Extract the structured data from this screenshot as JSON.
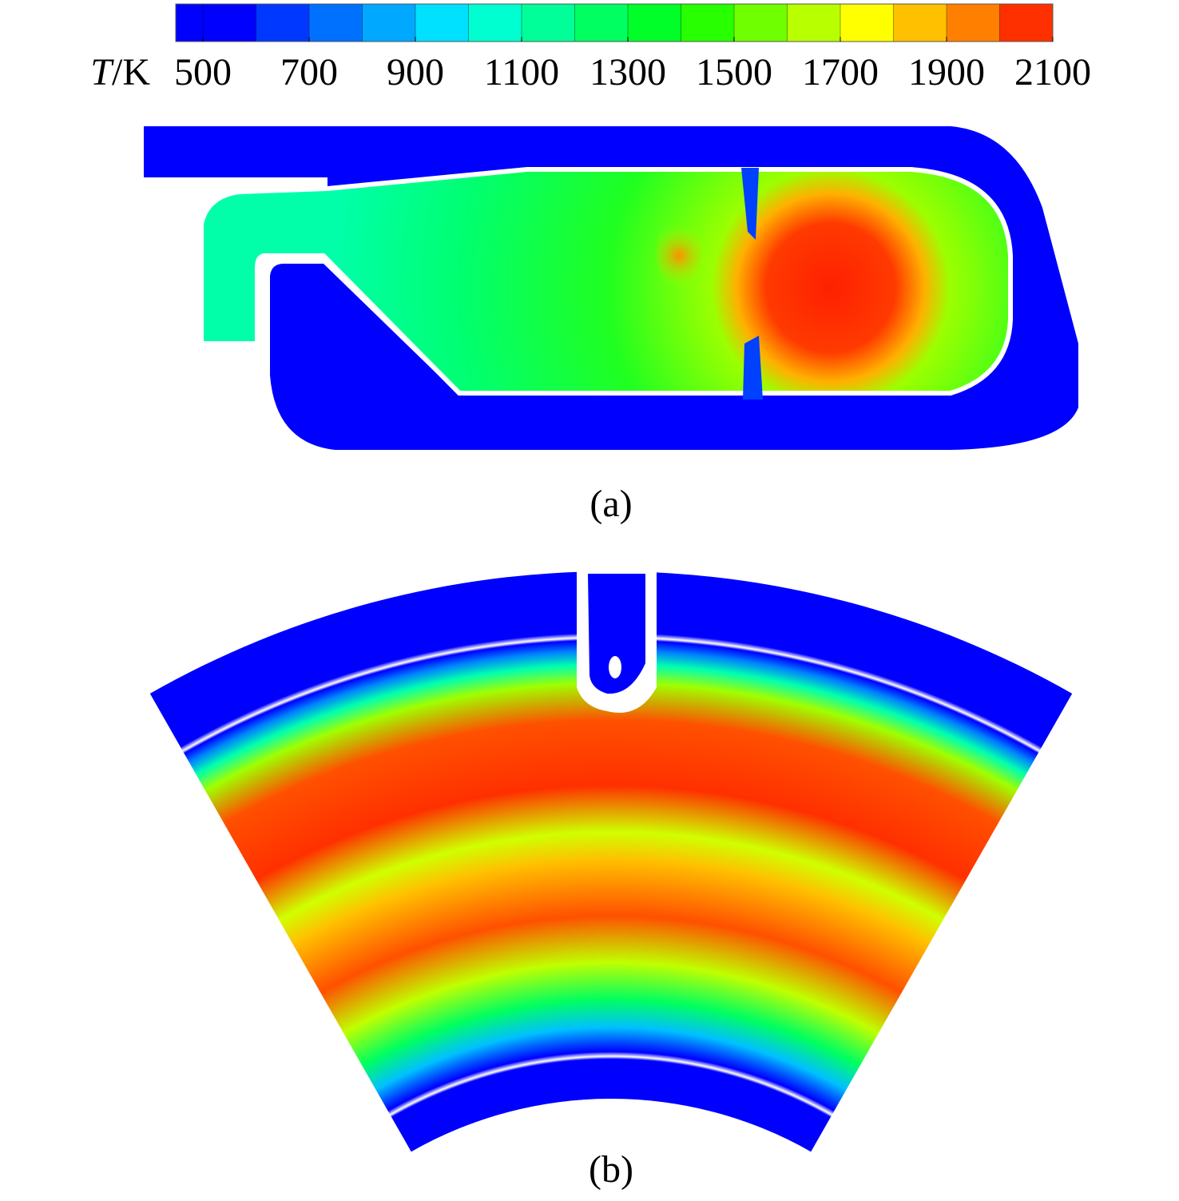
{
  "colorbar": {
    "label": {
      "symbol": "T",
      "unit": "/K"
    },
    "range": [
      500,
      2100
    ],
    "ticks": [
      500,
      700,
      900,
      1100,
      1300,
      1500,
      1700,
      1900,
      2100
    ],
    "colors": [
      "#0000ff",
      "#0038ff",
      "#0070ff",
      "#00a8ff",
      "#00e0ff",
      "#00ffd0",
      "#00ff98",
      "#00ff60",
      "#00ff28",
      "#28ff00",
      "#70ff00",
      "#b8ff00",
      "#ffff00",
      "#ffc000",
      "#ff8000",
      "#ff3000"
    ]
  },
  "panels": [
    {
      "label": "(a)"
    },
    {
      "label": "(b)"
    }
  ]
}
